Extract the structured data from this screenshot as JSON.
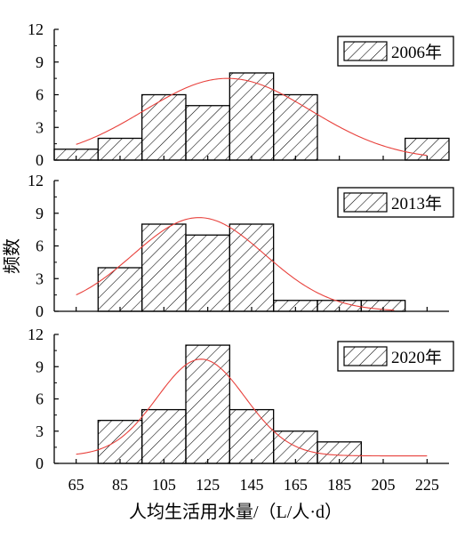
{
  "ylabel": "频数",
  "xlabel": "人均生活用水量/（L/人·d）",
  "x_ticks": [
    65,
    85,
    105,
    125,
    145,
    165,
    185,
    205,
    225
  ],
  "colors": {
    "bar_fill": "#ffffff",
    "bar_stroke": "#000000",
    "hatch": "#000000",
    "curve": "#e8413c",
    "axis": "#000000"
  },
  "chart_data": [
    {
      "type": "bar",
      "legend": "2006年",
      "x": [
        65,
        85,
        105,
        125,
        145,
        165,
        185,
        205,
        225
      ],
      "values": [
        1,
        2,
        6,
        5,
        8,
        6,
        0,
        0,
        2
      ],
      "ylim": [
        0,
        12
      ],
      "y_ticks": [
        0,
        3,
        6,
        9,
        12
      ],
      "fit_curve": {
        "type": "normal",
        "mean": 134,
        "sd": 38,
        "peak": 7.5,
        "x_range": [
          65,
          225
        ]
      },
      "grid": false,
      "legend_placement": "top-right"
    },
    {
      "type": "bar",
      "legend": "2013年",
      "x": [
        65,
        85,
        105,
        125,
        145,
        165,
        185,
        205,
        225
      ],
      "values": [
        0,
        4,
        8,
        7,
        8,
        1,
        1,
        1,
        0
      ],
      "ylim": [
        0,
        12
      ],
      "y_ticks": [
        0,
        3,
        6,
        9,
        12
      ],
      "fit_curve": {
        "type": "normal",
        "mean": 121,
        "sd": 30,
        "peak": 8.6,
        "x_range": [
          65,
          210
        ]
      },
      "grid": false,
      "legend_placement": "top-right"
    },
    {
      "type": "bar",
      "legend": "2020年",
      "x": [
        65,
        85,
        105,
        125,
        145,
        165,
        185,
        205,
        225
      ],
      "values": [
        0,
        4,
        5,
        11,
        5,
        3,
        2,
        0,
        0
      ],
      "ylim": [
        0,
        12
      ],
      "y_ticks": [
        0,
        3,
        6,
        9,
        12
      ],
      "fit_curve": {
        "type": "normal",
        "mean": 122,
        "sd": 20,
        "peak": 9.7,
        "baseline": 0.7,
        "x_range": [
          65,
          225
        ]
      },
      "grid": false,
      "legend_placement": "top-right"
    }
  ]
}
